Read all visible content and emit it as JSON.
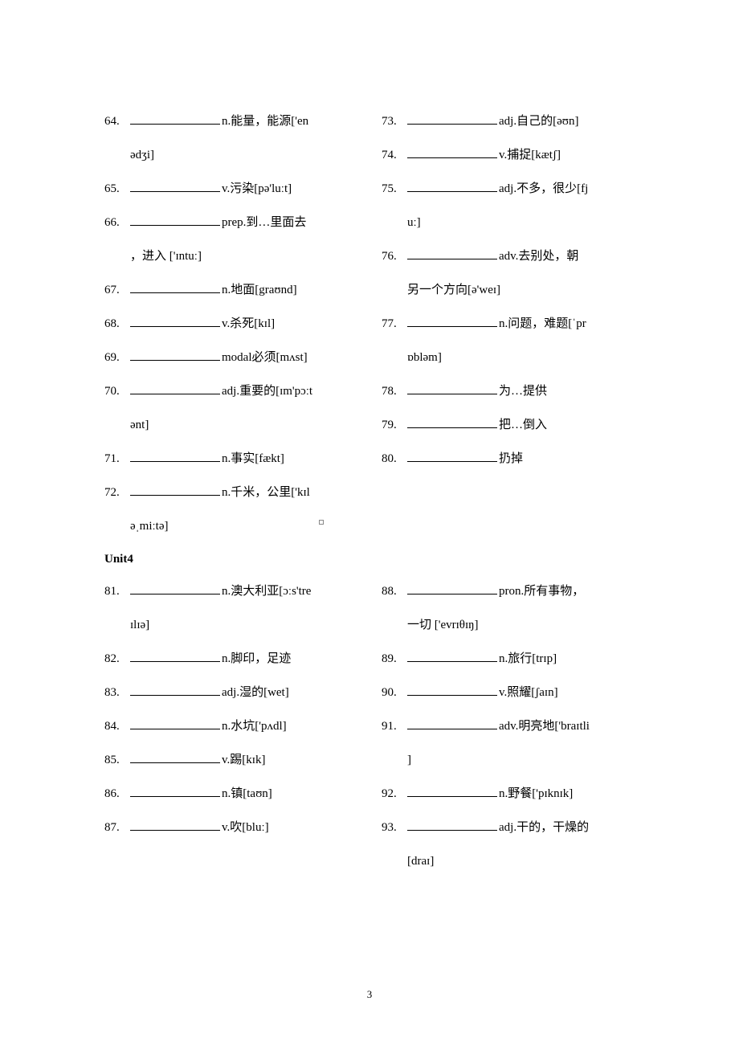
{
  "section1": {
    "left": [
      {
        "num": "64.",
        "def": "n.能量，能源['en",
        "cont": "ədʒi]"
      },
      {
        "num": "65.",
        "def": "v.污染[pə'luːt]"
      },
      {
        "num": "66.",
        "def": "prep.到…里面去",
        "cont": "，进入 ['ɪntuː]"
      },
      {
        "num": "67.",
        "def": "n.地面[graʊnd]"
      },
      {
        "num": "68.",
        "def": "v.杀死[kɪl]"
      },
      {
        "num": "69.",
        "def": "modal必须[mʌst]"
      },
      {
        "num": "70.",
        "def": "adj.重要的[ɪm'pɔːt",
        "cont": "ənt]"
      },
      {
        "num": "71.",
        "def": "n.事实[fækt]"
      },
      {
        "num": "72.",
        "def": "n.千米，公里['kɪl",
        "cont": "əˌmiːtə]"
      }
    ],
    "right": [
      {
        "num": "73.",
        "def": "adj.自己的[əʊn]"
      },
      {
        "num": "74.",
        "def": "v.捕捉[kætʃ]"
      },
      {
        "num": "75.",
        "def": "adj.不多，很少[fj",
        "cont": "uː]"
      },
      {
        "num": "76.",
        "def": "adv.去别处，朝",
        "cont": "另一个方向[ə'weɪ]"
      },
      {
        "num": "77.",
        "def": "n.问题，难题[ˈpr",
        "cont": "ɒbləm]"
      },
      {
        "num": "78.",
        "def": "为…提供"
      },
      {
        "num": "79.",
        "def": "把…倒入"
      },
      {
        "num": "80.",
        "def": "扔掉"
      }
    ]
  },
  "unitHeader": "Unit4",
  "section2": {
    "left": [
      {
        "num": "81.",
        "def": "n.澳大利亚[ɔːs'tre",
        "cont": "ɪlɪə]"
      },
      {
        "num": "82.",
        "def": "n.脚印，足迹"
      },
      {
        "num": "83.",
        "def": "adj.湿的[wet]"
      },
      {
        "num": "84.",
        "def": "n.水坑['pʌdl]"
      },
      {
        "num": "85.",
        "def": "v.踢[kɪk]"
      },
      {
        "num": "86.",
        "def": "n.镇[taʊn]"
      },
      {
        "num": "87.",
        "def": "v.吹[bluː]"
      }
    ],
    "right": [
      {
        "num": "88.",
        "def": "pron.所有事物，",
        "cont": "一切 ['evrɪθɪŋ]"
      },
      {
        "num": "89.",
        "def": "n.旅行[trɪp]"
      },
      {
        "num": "90.",
        "def": "v.照耀[ʃaɪn]"
      },
      {
        "num": "91.",
        "def": "adv.明亮地['braɪtli",
        "cont": "]"
      },
      {
        "num": "92.",
        "def": "n.野餐['pɪknɪk]"
      },
      {
        "num": "93.",
        "def": "adj.干的，干燥的",
        "cont": "[draɪ]"
      }
    ]
  },
  "pageNumber": "3"
}
